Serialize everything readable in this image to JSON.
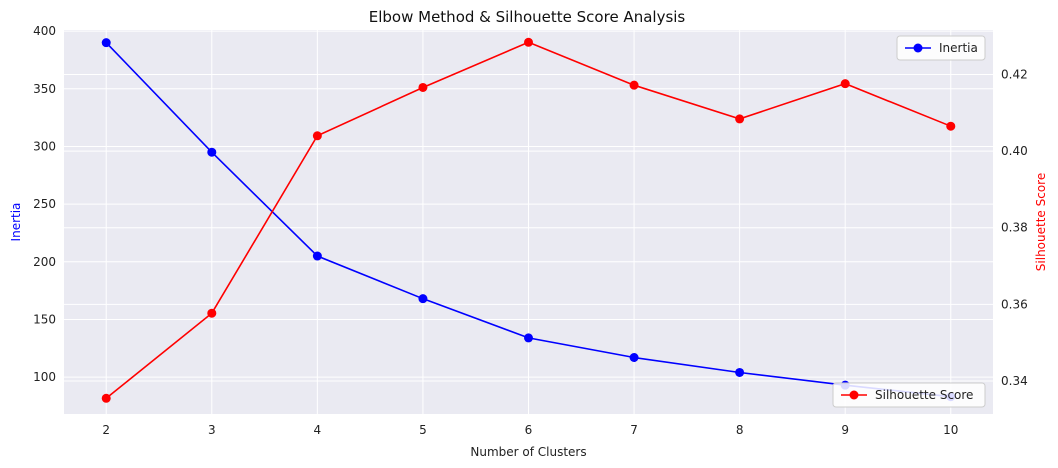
{
  "chart_data": {
    "type": "line",
    "title": "Elbow Method & Silhouette Score Analysis",
    "xlabel": "Number of Clusters",
    "ylabel_left": "Inertia",
    "ylabel_right": "Silhouette Score",
    "x": [
      2,
      3,
      4,
      5,
      6,
      7,
      8,
      9,
      10
    ],
    "x_ticks": [
      "2",
      "3",
      "4",
      "5",
      "6",
      "7",
      "8",
      "9",
      "10"
    ],
    "xlim": [
      1.6,
      10.4
    ],
    "left_axis": {
      "ylim": [
        68,
        401
      ],
      "ticks": [
        100,
        150,
        200,
        250,
        300,
        350,
        400
      ],
      "tick_labels": [
        "100",
        "150",
        "200",
        "250",
        "300",
        "350",
        "400"
      ],
      "color": "#0000ff"
    },
    "right_axis": {
      "ylim": [
        0.3314,
        0.4316
      ],
      "ticks": [
        0.34,
        0.36,
        0.38,
        0.4,
        0.42
      ],
      "tick_labels": [
        "0.34",
        "0.36",
        "0.38",
        "0.40",
        "0.42"
      ],
      "color": "#ff0000"
    },
    "series": [
      {
        "name": "Inertia",
        "axis": "left",
        "color": "#0000ff",
        "values": [
          390,
          295,
          205,
          168,
          134,
          117,
          104,
          93,
          83
        ]
      },
      {
        "name": "Silhouette Score",
        "axis": "right",
        "color": "#ff0000",
        "values": [
          0.3355,
          0.3577,
          0.404,
          0.4166,
          0.4284,
          0.4172,
          0.4084,
          0.4176,
          0.4065
        ]
      }
    ],
    "grid": true,
    "background": "#eaeaf2",
    "legend_inertia_position": "upper-right",
    "legend_silhouette_position": "lower-right"
  }
}
